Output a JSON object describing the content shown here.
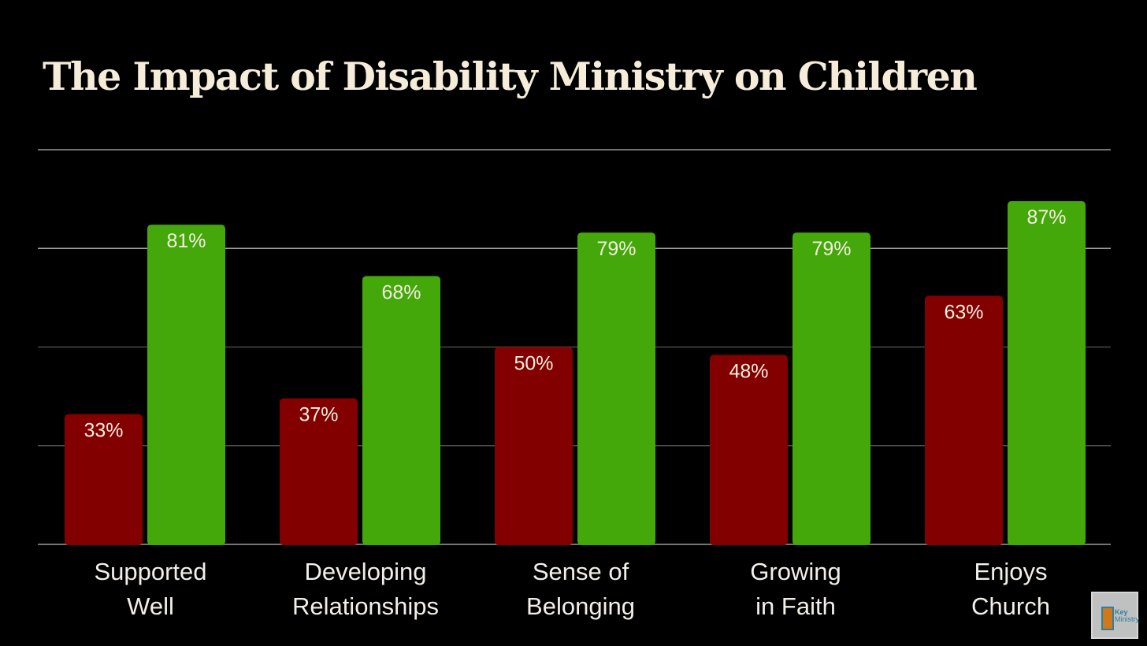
{
  "chart_data": {
    "type": "bar",
    "title": "The Impact of Disability Ministry on Children",
    "categories": [
      "Supported Well",
      "Developing Relationships",
      "Sense of Belonging",
      "Growing in Faith",
      "Enjoys Church"
    ],
    "category_lines": [
      [
        "Supported",
        "Well"
      ],
      [
        "Developing",
        "Relationships"
      ],
      [
        "Sense of",
        "Belonging"
      ],
      [
        "Growing",
        "in Faith"
      ],
      [
        "Enjoys",
        "Church"
      ]
    ],
    "series": [
      {
        "name": "red",
        "color": "#820000",
        "values": [
          33,
          37,
          50,
          48,
          63
        ],
        "labels": [
          "33%",
          "37%",
          "50%",
          "48%",
          "63%"
        ]
      },
      {
        "name": "green",
        "color": "#44a80a",
        "values": [
          81,
          68,
          79,
          79,
          87
        ],
        "labels": [
          "81%",
          "68%",
          "79%",
          "79%",
          "87%"
        ]
      }
    ],
    "ylim": [
      0,
      100
    ],
    "gridlines": [
      0,
      25,
      50,
      75,
      100
    ],
    "grid": true,
    "xlabel": "",
    "ylabel": ""
  },
  "logo": {
    "line1": "Key",
    "line2": "Ministry"
  }
}
